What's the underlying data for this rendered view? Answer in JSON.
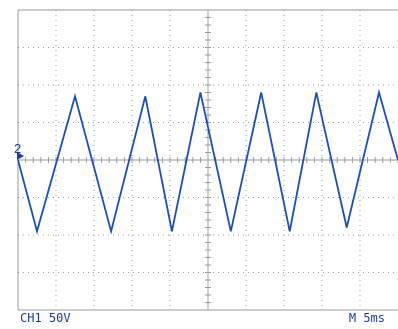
{
  "screen": {
    "channel_label": "CH1 50V",
    "timebase_label": "M 5ms",
    "channel_marker": "2"
  },
  "colors": {
    "trace": "#1a4fb8",
    "grid": "#9a9a9a",
    "text": "#1a3d9c",
    "background": "#ffffff"
  },
  "chart_data": {
    "type": "line",
    "title": "",
    "xlabel": "",
    "ylabel": "",
    "divisions": {
      "x": 10,
      "y": 8
    },
    "xlim": [
      0,
      10
    ],
    "ylim": [
      -4,
      4
    ],
    "grid": true,
    "series": [
      {
        "waveform": "triangle",
        "x": [
          0,
          0.5,
          1.5,
          2.45,
          3.35,
          4.05,
          4.8,
          5.6,
          6.4,
          7.15,
          7.85,
          8.65,
          9.5,
          10.0
        ],
        "y": [
          0.0,
          -1.9,
          1.7,
          -1.9,
          1.7,
          -1.9,
          1.8,
          -1.9,
          1.8,
          -1.9,
          1.8,
          -1.8,
          1.8,
          0.0
        ]
      }
    ]
  }
}
